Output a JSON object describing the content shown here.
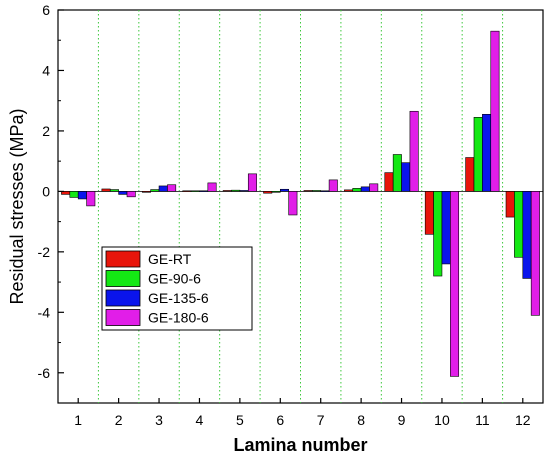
{
  "chart_data": {
    "type": "bar",
    "xlabel": "Lamina number",
    "ylabel": "Residual stresses (MPa)",
    "ylim": [
      -7,
      6
    ],
    "yticks": [
      -6,
      -4,
      -2,
      0,
      2,
      4,
      6
    ],
    "categories": [
      "1",
      "2",
      "3",
      "4",
      "5",
      "6",
      "7",
      "8",
      "9",
      "10",
      "11",
      "12"
    ],
    "grid": "vertical dotted separators between laminae",
    "legend_position": "left-center",
    "series": [
      {
        "name": "GE-RT",
        "color": "#e8150b",
        "values": [
          -0.1,
          0.08,
          -0.03,
          0.02,
          0.03,
          -0.06,
          0.03,
          0.05,
          0.62,
          -1.42,
          1.12,
          -0.85
        ]
      },
      {
        "name": "GE-90-6",
        "color": "#14e814",
        "values": [
          -0.2,
          0.06,
          0.06,
          0.02,
          0.04,
          -0.03,
          0.03,
          0.1,
          1.22,
          -2.8,
          2.45,
          -2.18
        ]
      },
      {
        "name": "GE-135-6",
        "color": "#0a14ec",
        "values": [
          -0.25,
          -0.1,
          0.18,
          0.02,
          0.03,
          0.07,
          0.02,
          0.15,
          0.95,
          -2.4,
          2.55,
          -2.88
        ]
      },
      {
        "name": "GE-180-6",
        "color": "#e11ee8",
        "values": [
          -0.48,
          -0.18,
          0.22,
          0.28,
          0.58,
          -0.78,
          0.38,
          0.25,
          2.65,
          -6.12,
          5.3,
          -4.1
        ]
      }
    ]
  }
}
